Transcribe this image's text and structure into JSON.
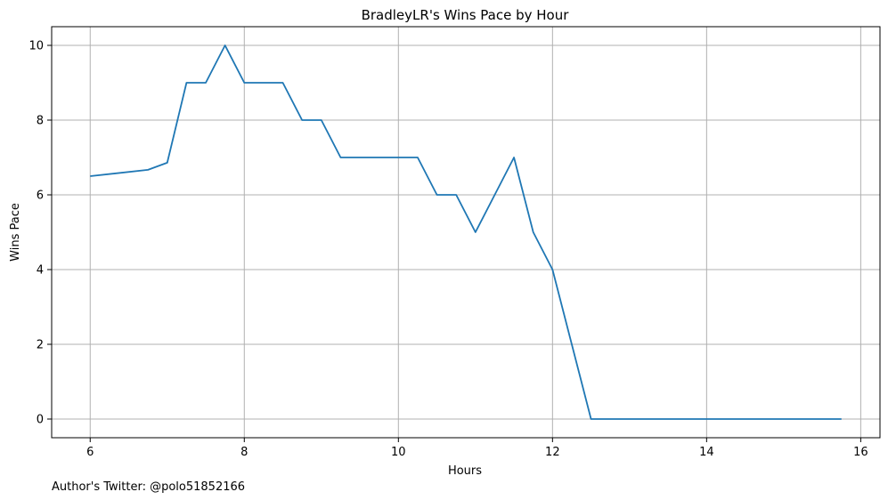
{
  "chart_data": {
    "type": "line",
    "title": "BradleyLR's Wins Pace by Hour",
    "xlabel": "Hours",
    "ylabel": "Wins Pace",
    "xlim": [
      5.5,
      16.25
    ],
    "ylim": [
      -0.5,
      10.5
    ],
    "xticks": [
      6,
      8,
      10,
      12,
      14,
      16
    ],
    "yticks": [
      0,
      2,
      4,
      6,
      8,
      10
    ],
    "grid": true,
    "line_color": "#1f77b4",
    "grid_color": "#b0b0b0",
    "series": [
      {
        "x": [
          6.0,
          6.75,
          7.0,
          7.25,
          7.5,
          7.75,
          8.0,
          8.25,
          8.5,
          8.75,
          9.0,
          9.25,
          9.5,
          9.75,
          10.0,
          10.25,
          10.5,
          10.75,
          11.0,
          11.25,
          11.5,
          11.75,
          12.0,
          12.25,
          12.5,
          12.75,
          13.0,
          13.25,
          13.5,
          13.75,
          14.0,
          14.25,
          14.5,
          14.75,
          15.0,
          15.25,
          15.5,
          15.75
        ],
        "y": [
          6.5,
          6.67,
          6.86,
          9.0,
          9.0,
          10.0,
          9.0,
          9.0,
          9.0,
          8.0,
          8.0,
          7.0,
          7.0,
          7.0,
          7.0,
          7.0,
          6.0,
          6.0,
          5.0,
          6.0,
          7.0,
          5.0,
          4.0,
          2.0,
          0.0,
          0.0,
          0.0,
          0.0,
          0.0,
          0.0,
          0.0,
          0.0,
          0.0,
          0.0,
          0.0,
          0.0,
          0.0,
          0.0
        ]
      }
    ]
  },
  "footnote": "Author's Twitter: @polo51852166"
}
